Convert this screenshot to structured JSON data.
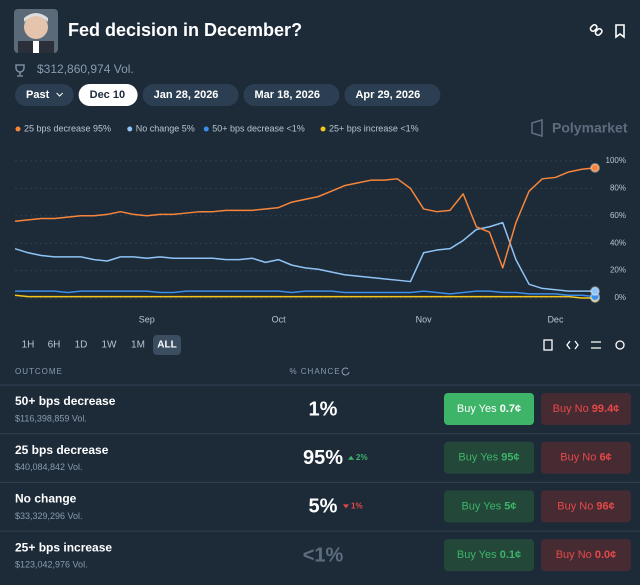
{
  "header": {
    "title": "Fed decision in December?",
    "volume": "$312,860,974 Vol."
  },
  "date_tabs": [
    "Past",
    "Dec 10",
    "Jan 28, 2026",
    "Mar 18, 2026",
    "Apr 29, 2026"
  ],
  "brand": "Polymarket",
  "chart_data": {
    "type": "line",
    "categories": [
      null,
      null,
      null,
      null,
      null,
      null,
      null,
      null,
      null,
      null,
      "Sep",
      null,
      null,
      null,
      null,
      null,
      null,
      null,
      null,
      null,
      "Oct",
      null,
      null,
      null,
      null,
      null,
      null,
      null,
      null,
      null,
      null,
      "Nov",
      null,
      null,
      null,
      null,
      null,
      null,
      null,
      null,
      null,
      "Dec",
      null,
      null,
      null
    ],
    "series": [
      {
        "name": "25 bps decrease 95%",
        "color": "#f7853b",
        "values": [
          56,
          57,
          58,
          58,
          59,
          60,
          60,
          61,
          63,
          61,
          60,
          61,
          61,
          62,
          63,
          63,
          64,
          64,
          64,
          65,
          66,
          70,
          72,
          74,
          78,
          82,
          84,
          86,
          86,
          87,
          80,
          65,
          63,
          64,
          76,
          52,
          48,
          22,
          55,
          78,
          87,
          88,
          92,
          94,
          95
        ]
      },
      {
        "name": "No change 5%",
        "color": "#8fc3f5",
        "values": [
          36,
          33,
          31,
          30,
          30,
          30,
          28,
          27,
          30,
          30,
          29,
          30,
          29,
          29,
          29,
          29,
          28,
          28,
          29,
          26,
          28,
          24,
          22,
          21,
          19,
          17,
          16,
          15,
          14,
          13,
          12,
          33,
          35,
          36,
          42,
          50,
          52,
          55,
          28,
          10,
          7,
          6,
          5,
          5,
          5
        ]
      },
      {
        "name": "50+ bps decrease <1%",
        "color": "#3b8fe8",
        "values": [
          5,
          5,
          5,
          5,
          4,
          5,
          5,
          5,
          5,
          5,
          5,
          4,
          4,
          5,
          5,
          5,
          5,
          5,
          5,
          5,
          5,
          4,
          5,
          5,
          5,
          4,
          4,
          4,
          4,
          4,
          4,
          5,
          4,
          3,
          4,
          5,
          5,
          4,
          4,
          3,
          3,
          3,
          2,
          2,
          1
        ]
      },
      {
        "name": "25+ bps increase <1%",
        "color": "#f5c518",
        "values": [
          2,
          1,
          1,
          1,
          1,
          1,
          1,
          1,
          1,
          1,
          1,
          1,
          1,
          1,
          1,
          1,
          1,
          1,
          1,
          1,
          1,
          1,
          1,
          1,
          1,
          1,
          1,
          1,
          1,
          1,
          1,
          1,
          1,
          1,
          1,
          1,
          1,
          1,
          1,
          1,
          1,
          1,
          1,
          0,
          0
        ]
      }
    ],
    "ylim": [
      0,
      100
    ],
    "yticks": [
      {
        "value": 0,
        "label": "0%"
      },
      {
        "value": 20,
        "label": "20%"
      },
      {
        "value": 40,
        "label": "40%"
      },
      {
        "value": 60,
        "label": "60%"
      },
      {
        "value": 80,
        "label": "80%"
      },
      {
        "value": 100,
        "label": "100%"
      }
    ],
    "grid": true
  },
  "range_tabs": [
    "1H",
    "6H",
    "1D",
    "1W",
    "1M",
    "ALL"
  ],
  "table": {
    "headers": [
      "OUTCOME",
      "% CHANCE"
    ],
    "rows": [
      {
        "name": "50+ bps decrease",
        "volume": "$116,398,859 Vol.",
        "chance": "1%",
        "buy_yes": "Buy Yes",
        "yes_price": "0.7¢",
        "buy_no": "Buy No",
        "no_price": "99.4¢"
      },
      {
        "name": "25 bps decrease",
        "volume": "$40,084,842 Vol.",
        "chance": "95%",
        "change": "2%",
        "buy_yes": "Buy Yes",
        "yes_price": "95¢",
        "buy_no": "Buy No",
        "no_price": "6¢"
      },
      {
        "name": "No change",
        "volume": "$33,329,296 Vol.",
        "chance": "5%",
        "change": "1%",
        "buy_yes": "Buy Yes",
        "yes_price": "5¢",
        "buy_no": "Buy No",
        "no_price": "96¢"
      },
      {
        "name": "25+ bps increase",
        "volume": "$123,042,976 Vol.",
        "chance": "<1%",
        "buy_yes": "Buy Yes",
        "yes_price": "0.1¢",
        "buy_no": "Buy No",
        "no_price": "0.0¢"
      }
    ]
  }
}
